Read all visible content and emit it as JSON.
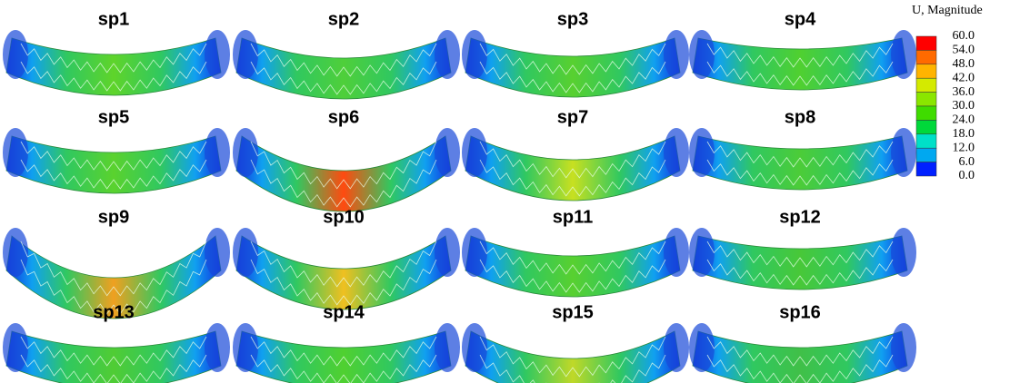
{
  "panels": [
    "sp1",
    "sp2",
    "sp3",
    "sp4",
    "sp5",
    "sp6",
    "sp7",
    "sp8",
    "sp9",
    "sp10",
    "sp11",
    "sp12",
    "sp13",
    "sp14",
    "sp15",
    "sp16"
  ],
  "legend": {
    "title": "U, Magnitude",
    "labels": [
      "60.0",
      "54.0",
      "48.0",
      "42.0",
      "36.0",
      "30.0",
      "24.0",
      "18.0",
      "12.0",
      "6.0",
      "0.0"
    ],
    "colors": [
      "#ff0000",
      "#ff6a00",
      "#ffb400",
      "#d4ea00",
      "#8ae600",
      "#3fdc00",
      "#00d83a",
      "#00e0c8",
      "#00a8f0",
      "#0020ff"
    ]
  }
}
